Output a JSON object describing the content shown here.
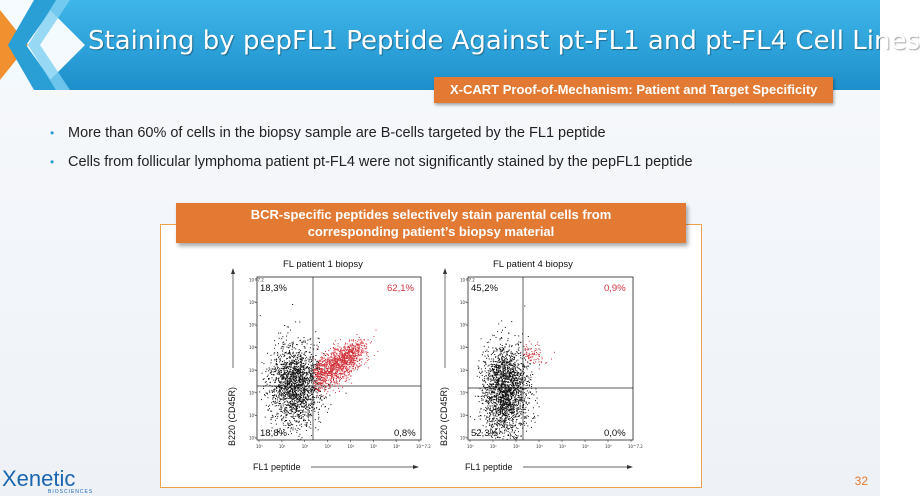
{
  "slide": {
    "title": "Staining by pepFL1 Peptide Against pt-FL1 and pt-FL4 Cell Lines",
    "subtitle": "X-CART Proof-of-Mechanism: Patient and Target Specificity",
    "page_number": "32"
  },
  "bullets": [
    "More than 60% of cells in the biopsy sample are B-cells targeted by the FL1 peptide",
    "Cells from follicular lymphoma patient pt-FL4 were not significantly stained by the pepFL1 peptide"
  ],
  "callout": {
    "line1": "BCR-specific peptides selectively stain parental cells from",
    "line2": "corresponding patient’s biopsy material"
  },
  "plots": [
    {
      "title": "FL patient 1 biopsy",
      "ylabel": "B220 (CD45R)",
      "xlabel": "FL1 peptide",
      "q_top_left": "18,3%",
      "q_top_right": "62,1%",
      "q_bottom_left": "18,8%",
      "q_bottom_right": "0,8%"
    },
    {
      "title": "FL patient 4 biopsy",
      "ylabel": "B220 (CD45R)",
      "xlabel": "FL1 peptide",
      "q_top_left": "45,2%",
      "q_top_right": "0,9%",
      "q_bottom_left": "52,3%",
      "q_bottom_right": "0,0%"
    }
  ],
  "axis_ticks": {
    "x": [
      "10⁰",
      "10¹",
      "10²",
      "10³",
      "10⁴",
      "10⁵",
      "10⁶",
      "10^7.2"
    ],
    "y": [
      "10⁰",
      "10¹",
      "10²",
      "10³",
      "10⁴",
      "10⁵",
      "10⁶",
      "10^7.2"
    ]
  },
  "logo": {
    "name": "Xenetic",
    "sub": "BIOSCIENCES"
  },
  "colors": {
    "banner_blue": "#2a9fd6",
    "accent_orange": "#e27a34",
    "positive_red": "#d2323a",
    "dot_black": "#111111"
  }
}
